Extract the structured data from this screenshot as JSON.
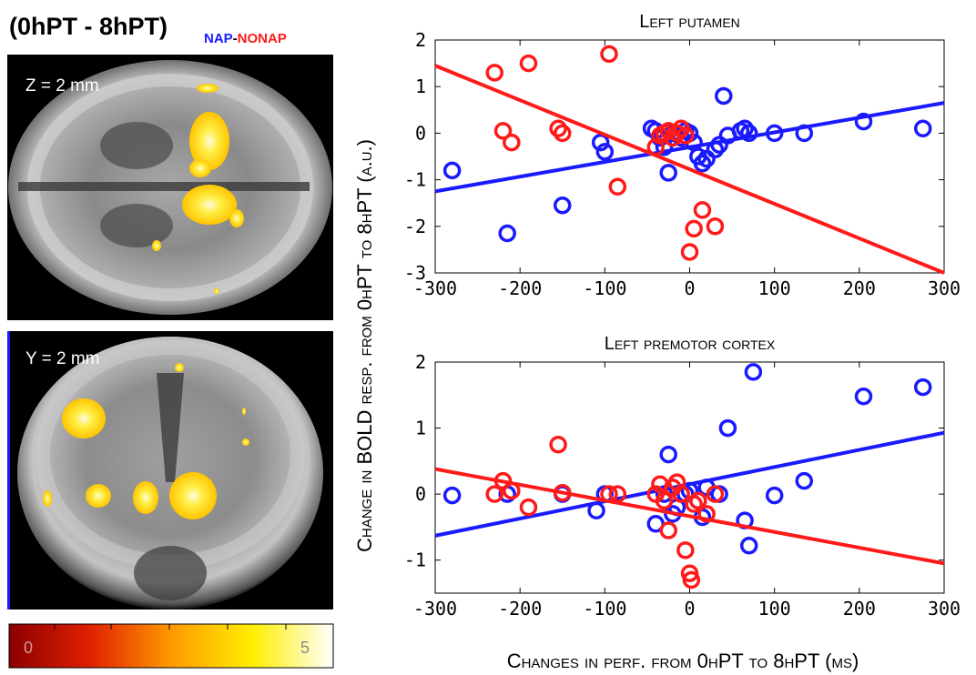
{
  "header": {
    "contrast": "(0hPT - 8hPT)",
    "nap": "NAP",
    "dash": "-",
    "nonap": "NONAP",
    "color_nap": "#1a1aff",
    "color_nonap": "#ff1a1a"
  },
  "brain": {
    "axial_label": "Z = 2 mm",
    "coronal_label": "Y = 2 mm",
    "colorbar_min": "0",
    "colorbar_max": "5"
  },
  "shared_axes": {
    "ylabel": "Change in BOLD resp. from 0hPT to 8hPT (a.u.)",
    "xlabel": "Changes in perf. from 0hPT to 8hPT (ms)"
  },
  "chart_data": [
    {
      "type": "scatter",
      "title": "Left putamen",
      "xlim": [
        -300,
        300
      ],
      "ylim": [
        -3,
        2
      ],
      "xticks": [
        "-300",
        "-200",
        "-100",
        "0",
        "100",
        "200",
        "300"
      ],
      "yticks": [
        "2",
        "1",
        "0",
        "-1",
        "-2",
        "-3"
      ],
      "xtick_values": [
        -300,
        -200,
        -100,
        0,
        100,
        200,
        300
      ],
      "ytick_values": [
        2,
        1,
        0,
        -1,
        -2,
        -3
      ],
      "grid": false,
      "series": [
        {
          "color": "#1a1aff",
          "points": [
            [
              -280,
              -0.8
            ],
            [
              -215,
              -2.15
            ],
            [
              -150,
              -1.55
            ],
            [
              -105,
              -0.2
            ],
            [
              -100,
              -0.4
            ],
            [
              -45,
              0.1
            ],
            [
              -40,
              0.05
            ],
            [
              -35,
              -0.1
            ],
            [
              -30,
              -0.3
            ],
            [
              -25,
              -0.85
            ],
            [
              -20,
              0.0
            ],
            [
              -10,
              -0.1
            ],
            [
              -5,
              0.05
            ],
            [
              0,
              0.0
            ],
            [
              5,
              -0.2
            ],
            [
              10,
              -0.5
            ],
            [
              15,
              -0.65
            ],
            [
              20,
              -0.55
            ],
            [
              30,
              -0.35
            ],
            [
              35,
              -0.25
            ],
            [
              40,
              0.8
            ],
            [
              45,
              -0.05
            ],
            [
              60,
              0.05
            ],
            [
              65,
              0.1
            ],
            [
              70,
              0.0
            ],
            [
              100,
              0.0
            ],
            [
              135,
              0.0
            ],
            [
              205,
              0.25
            ],
            [
              275,
              0.1
            ]
          ],
          "fit": [
            [
              -300,
              -1.25
            ],
            [
              300,
              0.65
            ]
          ]
        },
        {
          "color": "#ff1a1a",
          "points": [
            [
              -230,
              1.3
            ],
            [
              -220,
              0.05
            ],
            [
              -210,
              -0.2
            ],
            [
              -190,
              1.5
            ],
            [
              -155,
              0.1
            ],
            [
              -150,
              0.0
            ],
            [
              -95,
              1.7
            ],
            [
              -85,
              -1.15
            ],
            [
              -40,
              -0.3
            ],
            [
              -35,
              -0.05
            ],
            [
              -30,
              0.0
            ],
            [
              -25,
              0.05
            ],
            [
              -20,
              -0.1
            ],
            [
              -15,
              0.0
            ],
            [
              -10,
              0.1
            ],
            [
              -5,
              -0.05
            ],
            [
              0,
              -2.55
            ],
            [
              5,
              -2.05
            ],
            [
              15,
              -1.65
            ],
            [
              30,
              -2.0
            ]
          ],
          "fit": [
            [
              -300,
              1.45
            ],
            [
              300,
              -3.0
            ]
          ]
        }
      ]
    },
    {
      "type": "scatter",
      "title": "Left premotor cortex",
      "xlim": [
        -300,
        300
      ],
      "ylim": [
        -1.5,
        2
      ],
      "xticks": [
        "-300",
        "-200",
        "-100",
        "0",
        "100",
        "200",
        "300"
      ],
      "yticks": [
        "2",
        "1",
        "0",
        "-1"
      ],
      "xtick_values": [
        -300,
        -200,
        -100,
        0,
        100,
        200,
        300
      ],
      "ytick_values": [
        2,
        1,
        0,
        -1
      ],
      "grid": false,
      "series": [
        {
          "color": "#1a1aff",
          "points": [
            [
              -280,
              -0.02
            ],
            [
              -215,
              0.0
            ],
            [
              -150,
              0.0
            ],
            [
              -110,
              -0.25
            ],
            [
              -100,
              0.0
            ],
            [
              -40,
              -0.45
            ],
            [
              -30,
              0.0
            ],
            [
              -25,
              0.6
            ],
            [
              -20,
              -0.3
            ],
            [
              -15,
              -0.2
            ],
            [
              -5,
              0.0
            ],
            [
              0,
              0.05
            ],
            [
              10,
              -0.1
            ],
            [
              15,
              -0.35
            ],
            [
              20,
              0.1
            ],
            [
              35,
              0.0
            ],
            [
              45,
              1.0
            ],
            [
              65,
              -0.4
            ],
            [
              70,
              -0.78
            ],
            [
              75,
              1.85
            ],
            [
              100,
              -0.02
            ],
            [
              135,
              0.2
            ],
            [
              205,
              1.48
            ],
            [
              275,
              1.62
            ]
          ],
          "fit": [
            [
              -300,
              -0.63
            ],
            [
              300,
              0.93
            ]
          ]
        },
        {
          "color": "#ff1a1a",
          "points": [
            [
              -230,
              0.0
            ],
            [
              -220,
              0.2
            ],
            [
              -210,
              0.05
            ],
            [
              -190,
              -0.2
            ],
            [
              -155,
              0.75
            ],
            [
              -150,
              0.02
            ],
            [
              -95,
              0.0
            ],
            [
              -85,
              0.0
            ],
            [
              -40,
              0.0
            ],
            [
              -35,
              0.15
            ],
            [
              -30,
              -0.1
            ],
            [
              -25,
              -0.55
            ],
            [
              -20,
              0.1
            ],
            [
              -15,
              0.18
            ],
            [
              -10,
              0.0
            ],
            [
              -5,
              -0.85
            ],
            [
              0,
              -1.2
            ],
            [
              2,
              -1.3
            ],
            [
              5,
              -0.15
            ],
            [
              10,
              -0.1
            ],
            [
              20,
              -0.3
            ],
            [
              30,
              0.0
            ]
          ],
          "fit": [
            [
              -300,
              0.38
            ],
            [
              300,
              -1.05
            ]
          ]
        }
      ]
    }
  ]
}
